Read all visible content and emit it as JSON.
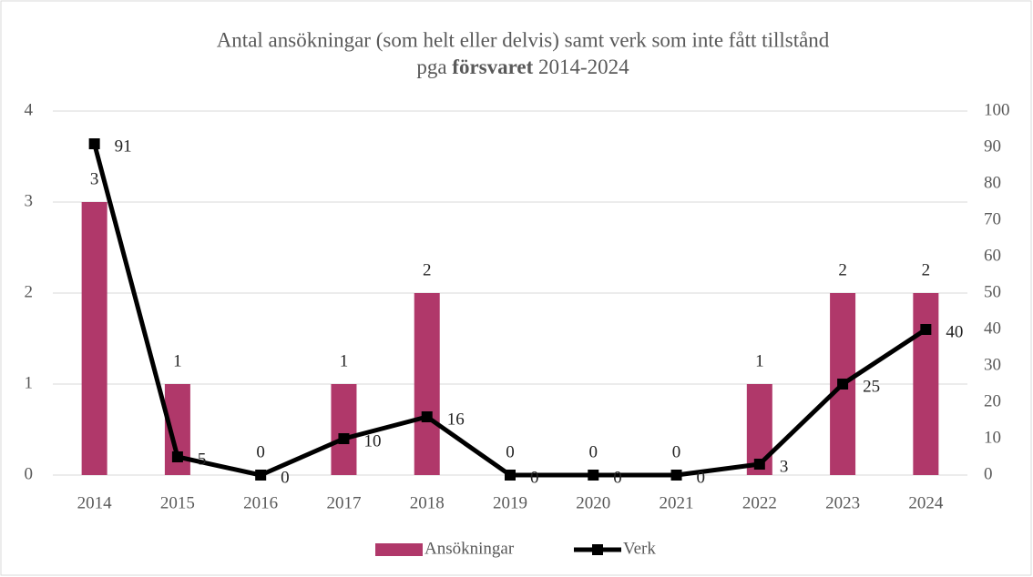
{
  "chart_data": {
    "type": "bar_line",
    "title": {
      "line1": "Antal ansökningar (som helt eller delvis) samt verk som inte fått tillstånd",
      "line2": [
        "pga",
        "försvaret",
        "2014-2024"
      ]
    },
    "categories": [
      "2014",
      "2015",
      "2016",
      "2017",
      "2018",
      "2019",
      "2020",
      "2021",
      "2022",
      "2023",
      "2024"
    ],
    "series": [
      {
        "name": "Ansökningar",
        "type": "bar",
        "color": "#b0386a",
        "values": [
          3,
          1,
          0,
          1,
          2,
          0,
          0,
          0,
          1,
          2,
          2
        ]
      },
      {
        "name": "Verk",
        "type": "line",
        "axis": "y2",
        "color": "#000000",
        "values": [
          91,
          5,
          0,
          10,
          16,
          0,
          0,
          0,
          3,
          25,
          40
        ]
      }
    ],
    "ylim": [
      0,
      4
    ],
    "yticks": [
      0,
      1,
      2,
      3,
      4
    ],
    "y2lim": [
      0,
      100
    ],
    "y2ticks": [
      0,
      10,
      20,
      30,
      40,
      50,
      60,
      70,
      80,
      90,
      100
    ],
    "grid": true,
    "legend": "bottom"
  }
}
